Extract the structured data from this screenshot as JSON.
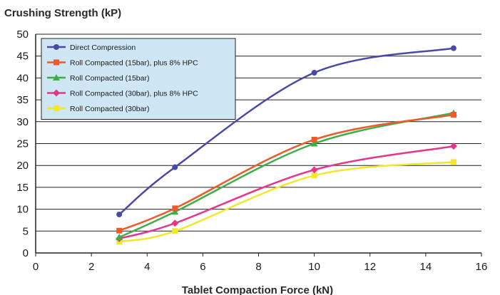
{
  "chart_data": {
    "type": "line",
    "title": "",
    "ylabel": "Crushing Strength (kP)",
    "xlabel": "Tablet Compaction Force (kN)",
    "xlim": [
      0,
      16
    ],
    "ylim": [
      0,
      50
    ],
    "xticks": [
      0,
      2,
      4,
      6,
      8,
      10,
      12,
      14,
      16
    ],
    "yticks": [
      0,
      5,
      10,
      15,
      20,
      25,
      30,
      35,
      40,
      45,
      50
    ],
    "grid": "horizontal",
    "legend_position": "top-left",
    "series": [
      {
        "name": "Direct Compression",
        "color": "#4a4aa6",
        "marker": "circle",
        "x": [
          3,
          5,
          10,
          15
        ],
        "y": [
          8.8,
          19.6,
          41.2,
          46.8
        ]
      },
      {
        "name": "Roll Compacted (15bar), plus 8% HPC",
        "color": "#ef5a28",
        "marker": "square",
        "x": [
          3,
          5,
          10,
          15
        ],
        "y": [
          5.1,
          10.2,
          25.9,
          31.6
        ]
      },
      {
        "name": "Roll Compacted (15bar)",
        "color": "#3fae49",
        "marker": "triangle",
        "x": [
          3,
          5,
          10,
          15
        ],
        "y": [
          3.6,
          9.4,
          25.0,
          32.0
        ]
      },
      {
        "name": "Roll Compacted (30bar), plus 8% HPC",
        "color": "#e6358a",
        "marker": "diamond",
        "x": [
          3,
          5,
          10,
          15
        ],
        "y": [
          3.3,
          6.8,
          19.0,
          24.4
        ]
      },
      {
        "name": "Roll Compacted (30bar)",
        "color": "#f2e82a",
        "marker": "square",
        "x": [
          3,
          5,
          10,
          15
        ],
        "y": [
          2.6,
          5.0,
          17.7,
          20.8
        ]
      }
    ]
  }
}
